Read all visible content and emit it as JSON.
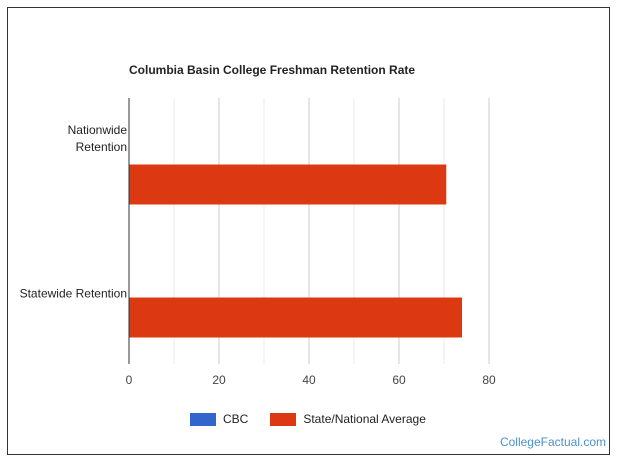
{
  "chart_data": {
    "type": "bar",
    "orientation": "horizontal",
    "title": "Columbia Basin College Freshman Retention Rate",
    "categories": [
      "Nationwide Retention",
      "Statewide Retention"
    ],
    "category_label_lines": [
      [
        "Nationwide",
        "Retention"
      ],
      [
        "Statewide Retention"
      ]
    ],
    "series": [
      {
        "name": "CBC",
        "color": "#3366cc",
        "values": [
          null,
          null
        ]
      },
      {
        "name": "State/National Average",
        "color": "#dc3912",
        "values": [
          70.5,
          74
        ]
      }
    ],
    "xlim": [
      0,
      80
    ],
    "xticks": [
      0,
      20,
      40,
      60,
      80
    ],
    "grid": true,
    "legend_position": "bottom"
  },
  "credit": "CollegeFactual.com"
}
